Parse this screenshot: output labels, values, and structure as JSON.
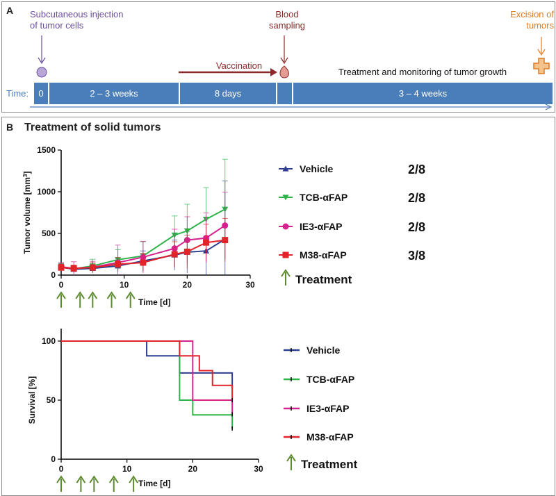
{
  "panel_a": {
    "label": "A",
    "time_label": "Time:",
    "segments": [
      "0",
      "2 – 3 weeks",
      "8 days",
      "",
      "3 – 4 weeks"
    ],
    "events": {
      "injection": "Subcutaneous injection of tumor cells",
      "injection_line1": "Subcutaneous injection",
      "injection_line2": "of tumor cells",
      "vaccination": "Vaccination",
      "blood_line1": "Blood",
      "blood_line2": "sampling",
      "excision_line1": "Excision of",
      "excision_line2": "tumors",
      "treatment_monitoring": "Treatment and monitoring of tumor growth"
    },
    "colors": {
      "timeline": "#4a7ebb",
      "injection": "#6b4e9b",
      "blood": "#8b2b2b",
      "excision": "#e07b22"
    }
  },
  "panel_b": {
    "label": "B",
    "title": "Treatment of solid tumors"
  },
  "treatment_label": "Treatment",
  "chart_data": [
    {
      "type": "line",
      "title": "",
      "xlabel": "Time [d]",
      "ylabel": "Tumor volume [mm³]",
      "ylabel_main": "Tumor volume [mm",
      "ylabel_sup": "3",
      "ylabel_end": "]",
      "xlim": [
        0,
        30
      ],
      "ylim": [
        0,
        1500
      ],
      "xticks": [
        "0",
        "10",
        "20",
        "30"
      ],
      "yticks": [
        "0",
        "500",
        "1000",
        "1500"
      ],
      "treatment_days": [
        0,
        3,
        5,
        8,
        11
      ],
      "series": [
        {
          "name": "Vehicle",
          "color": "#2e3f8f",
          "marker": "triangle-up",
          "ratio": "2/8",
          "x": [
            0,
            2,
            5,
            9,
            13,
            18,
            20,
            23,
            26
          ],
          "y": [
            95,
            70,
            80,
            110,
            170,
            240,
            275,
            290,
            430
          ],
          "err": [
            40,
            30,
            30,
            70,
            120,
            180,
            250,
            400,
            700
          ]
        },
        {
          "name": "TCB-αFAP",
          "color": "#2eb34a",
          "marker": "triangle-down",
          "ratio": "2/8",
          "x": [
            0,
            2,
            5,
            9,
            13,
            18,
            20,
            23,
            26
          ],
          "y": [
            100,
            75,
            110,
            185,
            230,
            480,
            530,
            670,
            790
          ],
          "err": [
            40,
            40,
            80,
            120,
            170,
            230,
            320,
            380,
            600
          ]
        },
        {
          "name": "IE3-αFAP",
          "color": "#d6218f",
          "marker": "circle",
          "ratio": "2/8",
          "x": [
            0,
            2,
            5,
            9,
            13,
            18,
            20,
            23,
            26
          ],
          "y": [
            100,
            80,
            95,
            150,
            215,
            320,
            420,
            445,
            595
          ],
          "err": [
            50,
            80,
            70,
            210,
            190,
            230,
            280,
            300,
            400
          ]
        },
        {
          "name": "M38-αFAP",
          "color": "#e2232a",
          "marker": "square",
          "ratio": "3/8",
          "x": [
            0,
            2,
            5,
            9,
            13,
            18,
            20,
            23,
            26
          ],
          "y": [
            90,
            80,
            90,
            130,
            150,
            250,
            280,
            390,
            420
          ],
          "err": [
            40,
            40,
            60,
            80,
            110,
            150,
            200,
            220,
            260
          ]
        }
      ]
    },
    {
      "type": "line",
      "title": "",
      "xlabel": "Time [d]",
      "ylabel": "Survival [%]",
      "xlim": [
        0,
        30
      ],
      "ylim": [
        0,
        100
      ],
      "xticks": [
        "0",
        "10",
        "20",
        "30"
      ],
      "yticks": [
        "0",
        "50",
        "100"
      ],
      "treatment_days": [
        0,
        3,
        5,
        8,
        11
      ],
      "series": [
        {
          "name": "Vehicle",
          "color": "#2e3f8f",
          "steps": [
            [
              0,
              100
            ],
            [
              13,
              87.5
            ],
            [
              18,
              73
            ],
            [
              26,
              60
            ]
          ]
        },
        {
          "name": "TCB-αFAP",
          "color": "#2eb34a",
          "steps": [
            [
              0,
              100
            ],
            [
              13,
              100
            ],
            [
              18,
              50
            ],
            [
              20,
              37.5
            ],
            [
              26,
              26
            ]
          ]
        },
        {
          "name": "IE3-αFAP",
          "color": "#d6218f",
          "steps": [
            [
              0,
              100
            ],
            [
              18,
              100
            ],
            [
              20,
              50
            ],
            [
              26,
              38
            ]
          ]
        },
        {
          "name": "M38-αFAP",
          "color": "#e2232a",
          "steps": [
            [
              0,
              100
            ],
            [
              13,
              100
            ],
            [
              18,
              87.5
            ],
            [
              21,
              75
            ],
            [
              23,
              62.5
            ],
            [
              26,
              50
            ]
          ]
        }
      ]
    }
  ]
}
